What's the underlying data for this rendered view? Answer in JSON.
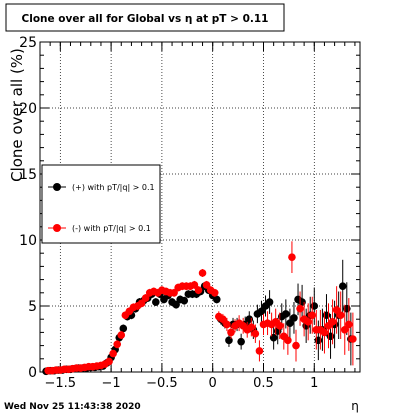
{
  "chart_data": {
    "type": "scatter",
    "title": "Clone  over all for Global vs   η at pT > 0.11",
    "xlabel": "η",
    "ylabel": "Clone  over all (%)",
    "xlim": [
      -1.7,
      1.45
    ],
    "ylim": [
      0,
      25
    ],
    "x_ticks": [
      -1.5,
      -1,
      -0.5,
      0,
      0.5,
      1
    ],
    "x_tick_labels": [
      "−1.5",
      "−1",
      "−0.5",
      "0",
      "0.5",
      "1"
    ],
    "y_ticks": [
      0,
      5,
      10,
      15,
      20,
      25
    ],
    "y_tick_labels": [
      "0",
      "5",
      "10",
      "15",
      "20",
      "25"
    ],
    "grid": true,
    "legend_position": "left",
    "timestamp": "Wed Nov 25 11:43:38 2020",
    "series": [
      {
        "name": "(+) with pT/|q| > 0.1",
        "color": "#000000",
        "points": [
          [
            -1.64,
            0.05,
            0.1
          ],
          [
            -1.6,
            0.1,
            0.1
          ],
          [
            -1.56,
            0.1,
            0.1
          ],
          [
            -1.52,
            0.15,
            0.1
          ],
          [
            -1.48,
            0.15,
            0.1
          ],
          [
            -1.44,
            0.2,
            0.1
          ],
          [
            -1.4,
            0.2,
            0.1
          ],
          [
            -1.36,
            0.25,
            0.15
          ],
          [
            -1.32,
            0.3,
            0.15
          ],
          [
            -1.28,
            0.3,
            0.15
          ],
          [
            -1.24,
            0.3,
            0.15
          ],
          [
            -1.2,
            0.35,
            0.15
          ],
          [
            -1.16,
            0.35,
            0.15
          ],
          [
            -1.12,
            0.4,
            0.15
          ],
          [
            -1.08,
            0.45,
            0.2
          ],
          [
            -1.04,
            0.7,
            0.2
          ],
          [
            -1.0,
            1.1,
            0.2
          ],
          [
            -0.96,
            1.7,
            0.3
          ],
          [
            -0.92,
            2.6,
            0.3
          ],
          [
            -0.88,
            3.3,
            0.3
          ],
          [
            -0.84,
            4.2,
            0.3
          ],
          [
            -0.8,
            4.3,
            0.3
          ],
          [
            -0.76,
            4.8,
            0.3
          ],
          [
            -0.72,
            5.3,
            0.3
          ],
          [
            -0.68,
            5.4,
            0.3
          ],
          [
            -0.64,
            5.6,
            0.3
          ],
          [
            -0.6,
            5.9,
            0.3
          ],
          [
            -0.56,
            5.3,
            0.3
          ],
          [
            -0.52,
            5.9,
            0.3
          ],
          [
            -0.48,
            5.5,
            0.3
          ],
          [
            -0.44,
            5.8,
            0.3
          ],
          [
            -0.4,
            5.3,
            0.3
          ],
          [
            -0.36,
            5.1,
            0.3
          ],
          [
            -0.32,
            5.5,
            0.3
          ],
          [
            -0.28,
            5.4,
            0.3
          ],
          [
            -0.24,
            5.9,
            0.3
          ],
          [
            -0.2,
            5.9,
            0.3
          ],
          [
            -0.16,
            5.9,
            0.3
          ],
          [
            -0.12,
            6.1,
            0.3
          ],
          [
            -0.08,
            6.5,
            0.3
          ],
          [
            -0.04,
            6.2,
            0.3
          ],
          [
            0.0,
            5.8,
            0.3
          ],
          [
            0.04,
            5.5,
            0.3
          ],
          [
            0.08,
            4.0,
            0.4
          ],
          [
            0.12,
            3.7,
            0.4
          ],
          [
            0.16,
            2.4,
            0.5
          ],
          [
            0.2,
            3.6,
            0.5
          ],
          [
            0.24,
            3.6,
            0.5
          ],
          [
            0.28,
            2.3,
            0.6
          ],
          [
            0.32,
            3.6,
            0.6
          ],
          [
            0.36,
            4.0,
            0.6
          ],
          [
            0.4,
            3.2,
            0.7
          ],
          [
            0.44,
            4.4,
            0.7
          ],
          [
            0.48,
            4.6,
            0.8
          ],
          [
            0.52,
            5.0,
            0.8
          ],
          [
            0.56,
            5.3,
            0.9
          ],
          [
            0.6,
            2.6,
            0.9
          ],
          [
            0.64,
            3.1,
            1.0
          ],
          [
            0.68,
            4.2,
            1.0
          ],
          [
            0.72,
            4.4,
            1.1
          ],
          [
            0.76,
            3.7,
            1.1
          ],
          [
            0.8,
            4.1,
            1.2
          ],
          [
            0.84,
            5.5,
            1.2
          ],
          [
            0.88,
            5.3,
            1.3
          ],
          [
            0.92,
            3.5,
            1.3
          ],
          [
            0.96,
            4.3,
            1.4
          ],
          [
            1.0,
            5.0,
            1.4
          ],
          [
            1.04,
            2.4,
            1.5
          ],
          [
            1.08,
            3.2,
            1.6
          ],
          [
            1.12,
            4.3,
            1.6
          ],
          [
            1.16,
            2.7,
            1.7
          ],
          [
            1.2,
            3.6,
            1.8
          ],
          [
            1.24,
            4.3,
            1.8
          ],
          [
            1.28,
            6.5,
            2.0
          ],
          [
            1.32,
            4.8,
            2.0
          ],
          [
            1.36,
            2.5,
            2.0
          ]
        ]
      },
      {
        "name": "(-) with pT/|q| > 0.1",
        "color": "#ff0000",
        "points": [
          [
            -1.62,
            0.1,
            0.1
          ],
          [
            -1.58,
            0.1,
            0.1
          ],
          [
            -1.54,
            0.15,
            0.1
          ],
          [
            -1.5,
            0.15,
            0.1
          ],
          [
            -1.46,
            0.2,
            0.1
          ],
          [
            -1.42,
            0.2,
            0.1
          ],
          [
            -1.38,
            0.25,
            0.1
          ],
          [
            -1.34,
            0.3,
            0.15
          ],
          [
            -1.3,
            0.3,
            0.15
          ],
          [
            -1.26,
            0.35,
            0.15
          ],
          [
            -1.22,
            0.4,
            0.15
          ],
          [
            -1.18,
            0.4,
            0.15
          ],
          [
            -1.14,
            0.45,
            0.15
          ],
          [
            -1.1,
            0.5,
            0.2
          ],
          [
            -1.06,
            0.6,
            0.2
          ],
          [
            -1.02,
            0.8,
            0.2
          ],
          [
            -0.98,
            1.4,
            0.2
          ],
          [
            -0.94,
            2.1,
            0.3
          ],
          [
            -0.9,
            2.8,
            0.3
          ],
          [
            -0.86,
            4.3,
            0.3
          ],
          [
            -0.82,
            4.6,
            0.3
          ],
          [
            -0.78,
            4.9,
            0.3
          ],
          [
            -0.74,
            5.0,
            0.3
          ],
          [
            -0.7,
            5.2,
            0.3
          ],
          [
            -0.66,
            5.6,
            0.3
          ],
          [
            -0.62,
            6.0,
            0.3
          ],
          [
            -0.58,
            6.1,
            0.3
          ],
          [
            -0.54,
            6.0,
            0.3
          ],
          [
            -0.5,
            6.2,
            0.3
          ],
          [
            -0.46,
            6.1,
            0.3
          ],
          [
            -0.42,
            6.0,
            0.3
          ],
          [
            -0.38,
            6.0,
            0.3
          ],
          [
            -0.34,
            6.4,
            0.3
          ],
          [
            -0.3,
            6.5,
            0.3
          ],
          [
            -0.26,
            6.5,
            0.3
          ],
          [
            -0.22,
            6.5,
            0.3
          ],
          [
            -0.18,
            6.6,
            0.3
          ],
          [
            -0.14,
            6.2,
            0.3
          ],
          [
            -0.1,
            7.5,
            0.3
          ],
          [
            -0.06,
            6.6,
            0.3
          ],
          [
            -0.02,
            6.2,
            0.3
          ],
          [
            0.02,
            6.0,
            0.3
          ],
          [
            0.06,
            4.2,
            0.4
          ],
          [
            0.1,
            4.0,
            0.4
          ],
          [
            0.14,
            3.6,
            0.5
          ],
          [
            0.18,
            3.0,
            0.5
          ],
          [
            0.22,
            3.5,
            0.5
          ],
          [
            0.26,
            3.7,
            0.6
          ],
          [
            0.3,
            3.5,
            0.6
          ],
          [
            0.34,
            3.2,
            0.6
          ],
          [
            0.38,
            3.4,
            0.7
          ],
          [
            0.42,
            2.9,
            0.7
          ],
          [
            0.46,
            1.6,
            0.8
          ],
          [
            0.5,
            3.6,
            0.8
          ],
          [
            0.54,
            3.7,
            0.9
          ],
          [
            0.58,
            3.6,
            0.9
          ],
          [
            0.62,
            3.8,
            1.0
          ],
          [
            0.66,
            3.5,
            1.0
          ],
          [
            0.7,
            2.7,
            1.0
          ],
          [
            0.74,
            2.4,
            1.1
          ],
          [
            0.78,
            8.7,
            1.2
          ],
          [
            0.82,
            2.0,
            1.2
          ],
          [
            0.86,
            4.8,
            1.3
          ],
          [
            0.9,
            4.0,
            1.3
          ],
          [
            0.94,
            3.8,
            1.4
          ],
          [
            0.98,
            4.3,
            1.4
          ],
          [
            1.02,
            3.2,
            1.5
          ],
          [
            1.06,
            3.2,
            1.5
          ],
          [
            1.1,
            3.0,
            1.6
          ],
          [
            1.14,
            3.5,
            1.7
          ],
          [
            1.18,
            3.8,
            1.7
          ],
          [
            1.22,
            4.7,
            1.8
          ],
          [
            1.26,
            4.3,
            1.8
          ],
          [
            1.3,
            3.2,
            1.9
          ],
          [
            1.34,
            3.6,
            2.0
          ],
          [
            1.38,
            2.5,
            2.0
          ]
        ]
      }
    ]
  }
}
